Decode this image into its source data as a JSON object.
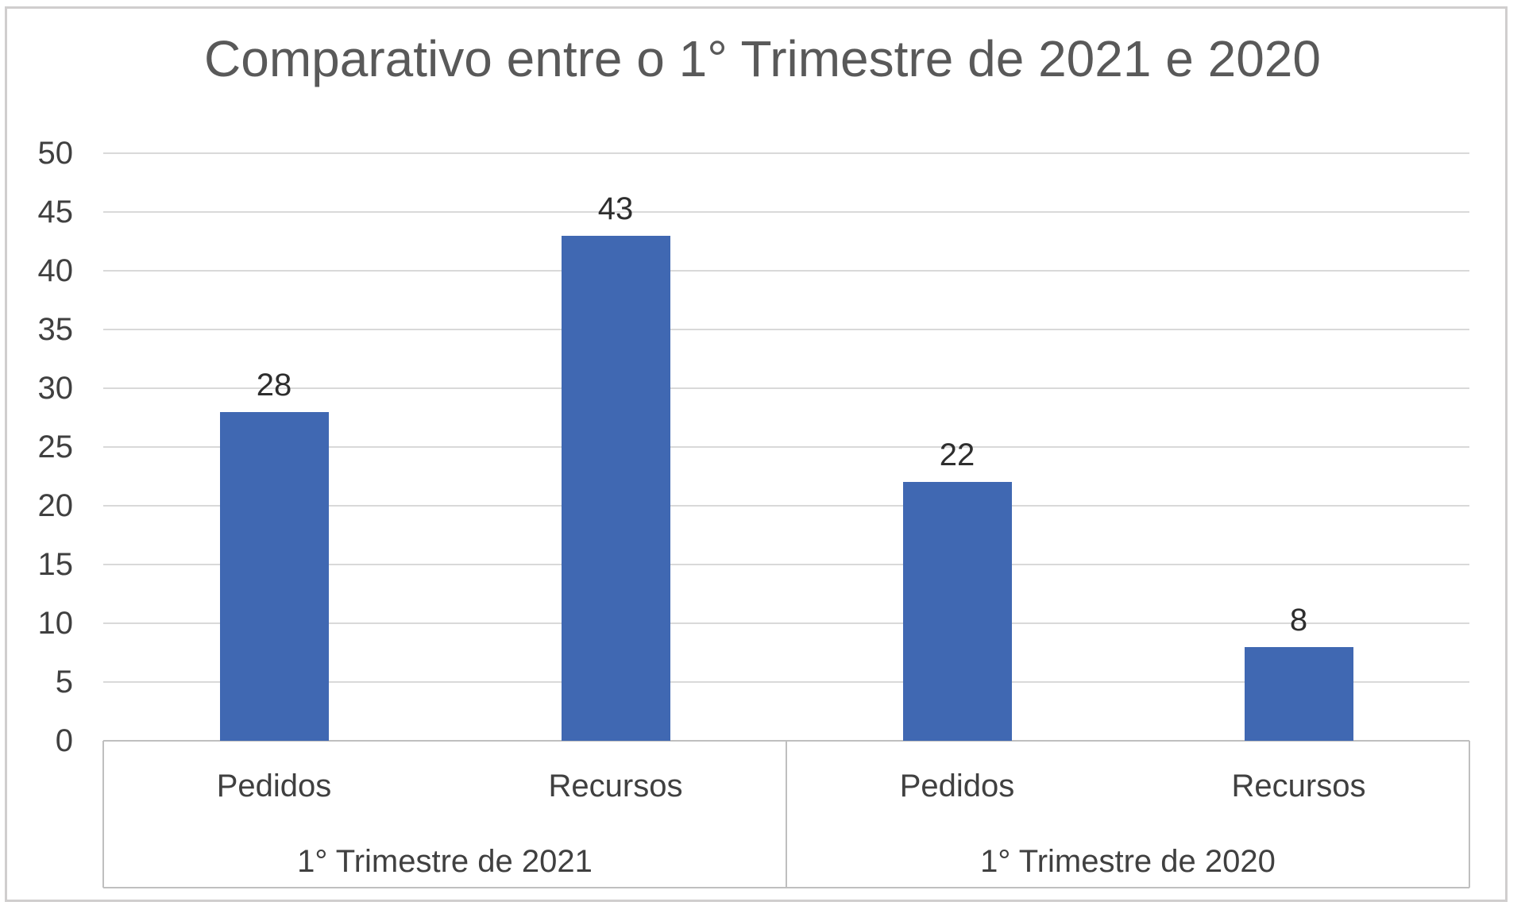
{
  "chart_data": {
    "type": "bar",
    "title": "Comparativo entre o 1° Trimestre de 2021 e 2020",
    "groups": [
      {
        "label": "1° Trimestre de 2021",
        "bars": [
          {
            "category": "Pedidos",
            "value": 28
          },
          {
            "category": "Recursos",
            "value": 43
          }
        ]
      },
      {
        "label": "1° Trimestre de 2020",
        "bars": [
          {
            "category": "Pedidos",
            "value": 22
          },
          {
            "category": "Recursos",
            "value": 8
          }
        ]
      }
    ],
    "ylim": [
      0,
      50
    ],
    "ytick_step": 5,
    "yticks": [
      0,
      5,
      10,
      15,
      20,
      25,
      30,
      35,
      40,
      45,
      50
    ],
    "grid": true,
    "legend": "none",
    "data_labels_visible": true
  },
  "colors": {
    "bar_fill": "#4068B2",
    "gridline": "#D9D9D9",
    "axis_line": "#BFBFBF",
    "chart_border": "#D0CECE",
    "title_text": "#595959",
    "axis_text": "#404040",
    "data_label_text": "#2E2E2E"
  }
}
